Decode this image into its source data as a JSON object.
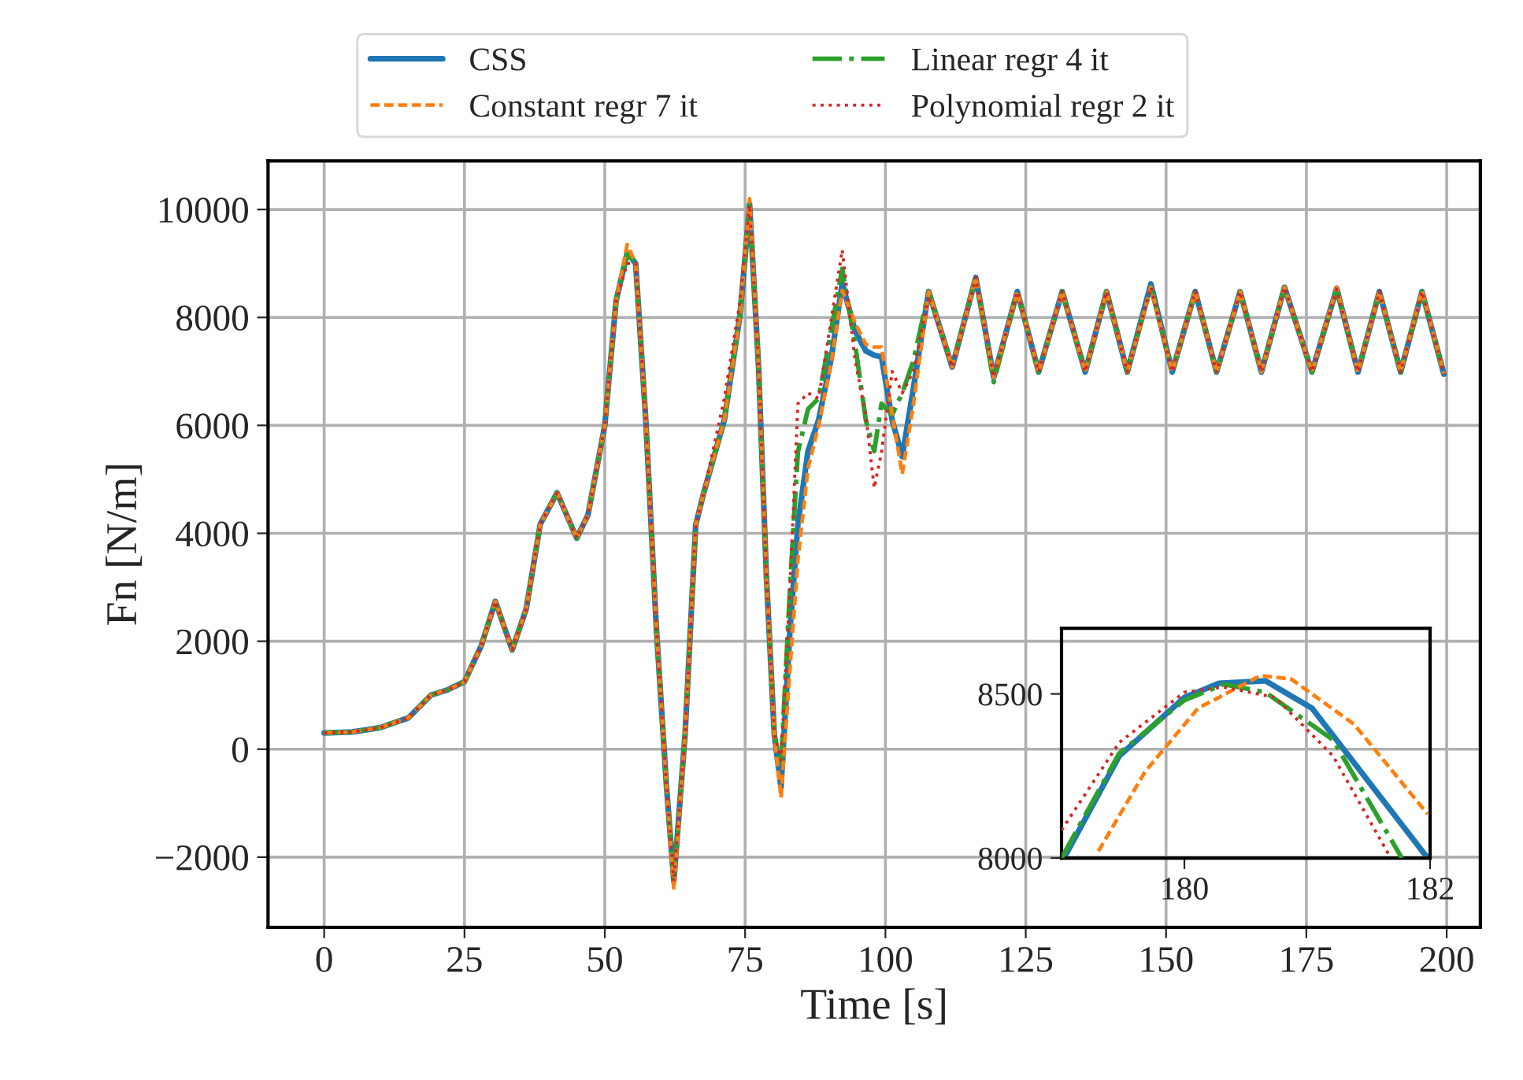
{
  "chart_data": [
    {
      "type": "line",
      "xlabel": "Time [s]",
      "ylabel": "Fn [N/m]",
      "grid": true,
      "legend": "top",
      "marker": "none",
      "xlim": [
        -10,
        206
      ],
      "ylim": [
        -3300,
        10900
      ],
      "xticks": [
        0,
        25,
        50,
        75,
        100,
        125,
        150,
        175,
        200
      ],
      "yticks": [
        {
          "value": -2000,
          "label": "−2000"
        },
        0,
        2000,
        4000,
        6000,
        8000,
        10000
      ],
      "x": [
        0,
        5,
        10,
        15,
        19,
        22,
        25,
        28,
        30.5,
        33.5,
        36,
        38.5,
        41.5,
        45,
        47,
        50,
        52,
        54,
        55.5,
        57.3,
        59.2,
        61,
        62.3,
        64.3,
        66.2,
        67.6,
        71.3,
        74.1,
        75.8,
        77.4,
        78.8,
        80.2,
        81.4,
        83,
        84.4,
        86.2,
        88.1,
        90.4,
        92.3,
        94.6,
        96.5,
        98,
        99.3,
        101.2,
        103,
        105,
        107.7,
        111.9,
        116.1,
        119.3,
        123.5,
        127.3,
        131.5,
        135.6,
        139.4,
        143.1,
        147.3,
        151.1,
        155.2,
        159,
        163.2,
        167,
        171.1,
        176,
        180.4,
        184.2,
        188,
        191.8,
        195.6,
        199.5
      ],
      "series": [
        {
          "name": "CSS",
          "color": "#1f77b4",
          "line_style": "solid",
          "values": [
            300,
            320,
            400,
            580,
            1000,
            1100,
            1250,
            1920,
            2740,
            1840,
            2600,
            4170,
            4750,
            3910,
            4340,
            6000,
            8300,
            9200,
            9000,
            6100,
            2220,
            -700,
            -2450,
            270,
            4160,
            4740,
            6100,
            8050,
            10090,
            7080,
            3190,
            270,
            -700,
            2220,
            4160,
            5520,
            6100,
            7270,
            8630,
            7750,
            7380,
            7300,
            7270,
            6100,
            5420,
            6700,
            8480,
            7080,
            8740,
            6890,
            8480,
            6990,
            8480,
            6990,
            8480,
            6990,
            8620,
            6990,
            8480,
            6990,
            8480,
            6990,
            8560,
            6990,
            8540,
            6990,
            8480,
            6990,
            8480,
            6950
          ]
        },
        {
          "name": "Constant regr 7 it",
          "color": "#ff7f0e",
          "line_style": "dashed",
          "values": [
            300,
            320,
            400,
            580,
            1000,
            1100,
            1250,
            1920,
            2740,
            1840,
            2600,
            4170,
            4750,
            3910,
            4340,
            6000,
            8300,
            9350,
            9000,
            6100,
            2220,
            -700,
            -2600,
            270,
            4160,
            4740,
            6100,
            8050,
            10200,
            7080,
            3190,
            270,
            -900,
            1500,
            3500,
            5200,
            6000,
            7200,
            8500,
            7900,
            7500,
            7450,
            7450,
            6200,
            5100,
            6400,
            8480,
            7080,
            8740,
            6890,
            8480,
            6990,
            8480,
            6990,
            8480,
            6990,
            8560,
            6990,
            8480,
            6990,
            8480,
            6990,
            8560,
            6990,
            8560,
            6990,
            8480,
            6990,
            8500,
            6950
          ]
        },
        {
          "name": "Linear regr 4 it",
          "color": "#2ca02c",
          "line_style": "dashdot",
          "values": [
            300,
            320,
            400,
            580,
            1000,
            1100,
            1250,
            1920,
            2740,
            1840,
            2600,
            4170,
            4750,
            3910,
            4340,
            6000,
            8300,
            9200,
            9000,
            6100,
            2220,
            -700,
            -2450,
            270,
            4160,
            4740,
            6100,
            8050,
            10090,
            7080,
            3190,
            270,
            -300,
            3000,
            5500,
            6300,
            6500,
            7800,
            8900,
            7500,
            6100,
            5520,
            6400,
            6200,
            6600,
            7200,
            8480,
            7080,
            8740,
            6800,
            8480,
            6990,
            8480,
            6990,
            8480,
            6990,
            8560,
            6990,
            8480,
            6990,
            8480,
            6990,
            8560,
            6990,
            8520,
            6990,
            8480,
            6990,
            8480,
            6950
          ]
        },
        {
          "name": "Polynomial regr 2 it",
          "color": "#d62728",
          "line_style": "dotted",
          "values": [
            300,
            320,
            400,
            580,
            1000,
            1100,
            1250,
            1920,
            2740,
            1840,
            2600,
            4170,
            4750,
            3910,
            4340,
            6000,
            8300,
            9000,
            9000,
            6100,
            2220,
            -700,
            -2450,
            270,
            4160,
            4740,
            6500,
            8300,
            10090,
            7080,
            3190,
            270,
            -200,
            3000,
            6400,
            6600,
            6500,
            8000,
            9250,
            7200,
            6200,
            4840,
            5500,
            7000,
            6600,
            7000,
            8400,
            7080,
            8740,
            6890,
            8480,
            6990,
            8480,
            6990,
            8480,
            6990,
            8560,
            6990,
            8480,
            6990,
            8480,
            6990,
            8560,
            6990,
            8520,
            6990,
            8480,
            6990,
            8480,
            6950
          ]
        }
      ]
    },
    {
      "type": "line",
      "grid": false,
      "marker": "none",
      "xlim": [
        179,
        182
      ],
      "ylim": [
        8000,
        8700
      ],
      "xticks": [
        180,
        182
      ],
      "yticks": [
        8000,
        8500
      ],
      "series": [
        {
          "color": "#1f77b4",
          "line_style": "solid",
          "x": [
            179.02,
            179.47,
            180,
            180.28,
            180.66,
            181.04,
            181.47,
            181.98
          ],
          "values": [
            8000,
            8311,
            8489,
            8532,
            8540,
            8456,
            8247,
            8000
          ]
        },
        {
          "color": "#ff7f0e",
          "line_style": "dashed",
          "x": [
            179.3,
            179.68,
            180.11,
            180.62,
            180.87,
            181.38,
            181.98
          ],
          "values": [
            8021,
            8263,
            8456,
            8556,
            8545,
            8408,
            8134
          ]
        },
        {
          "color": "#2ca02c",
          "line_style": "dashdot",
          "x": [
            179.0,
            179.47,
            180,
            180.32,
            180.66,
            181.21,
            181.77
          ],
          "values": [
            8000,
            8319,
            8481,
            8529,
            8505,
            8360,
            8000
          ]
        },
        {
          "color": "#d62728",
          "line_style": "dotted",
          "x": [
            179.0,
            179.47,
            180,
            180.32,
            180.74,
            181.21,
            181.68
          ],
          "values": [
            8085,
            8352,
            8505,
            8521,
            8489,
            8311,
            8000
          ]
        }
      ]
    }
  ]
}
